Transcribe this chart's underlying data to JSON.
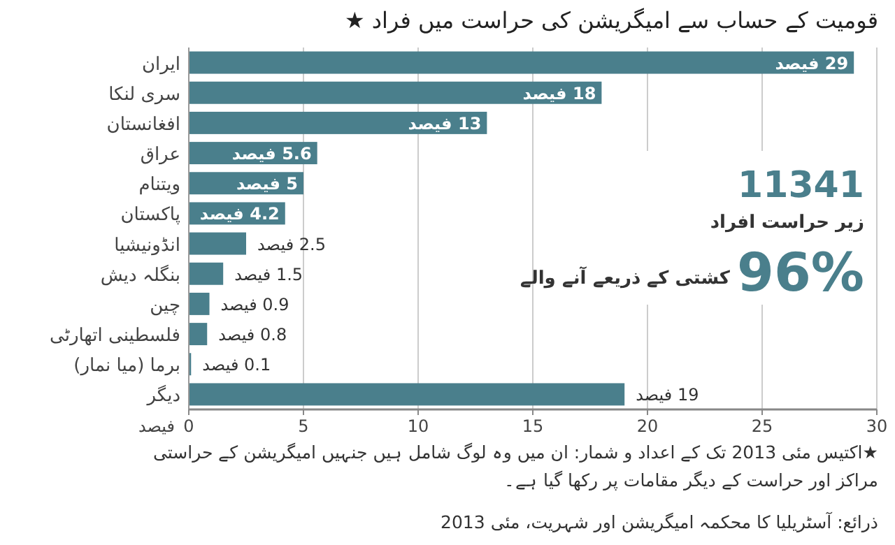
{
  "chart_data": {
    "type": "bar",
    "orientation": "horizontal",
    "title": "قومیت کے حساب سے امیگریشن کی حراست میں فراد ★",
    "categories": [
      "ایران",
      "سری لنکا",
      "افغانستان",
      "عراق",
      "ویتنام",
      "پاکستان",
      "انڈونیشیا",
      "بنگلہ دیش",
      "چین",
      "فلسطینی اتھارٹی",
      "برما (میا نمار)",
      "دیگر"
    ],
    "values": [
      29,
      18,
      13,
      5.6,
      5,
      4.2,
      2.5,
      1.5,
      0.9,
      0.8,
      0.1,
      19
    ],
    "value_labels": [
      "29 فیصد",
      "18 فیصد",
      "13 فیصد",
      "5.6 فیصد",
      "5 فیصد",
      "4.2 فیصد",
      "2.5 فیصد",
      "1.5 فیصد",
      "0.9 فیصد",
      "0.8 فیصد",
      "0.1 فیصد",
      "19 فیصد"
    ],
    "color": "#4a7f8c",
    "xlabel": "فیصد",
    "xlim": [
      0,
      30
    ],
    "xticks": [
      0,
      5,
      10,
      15,
      20,
      25,
      30
    ],
    "grid": "x",
    "annotations": [
      "11341",
      "زیر حراست افراد",
      "96%",
      "کشتی کے ذریعے آنے والے",
      "★اکتیس مئی 2013  تک کے اعداد و شمار: ان میں وہ لوگ شامل ہیں جنہیں امیگریشن کے حراستی مراکز اور حراست کے دیگر مقامات پر رکھا گیا ہے۔",
      "ذرائع: آسٹریلیا کا محکمہ امیگریشن اور شہریت، مئی 2013"
    ]
  }
}
